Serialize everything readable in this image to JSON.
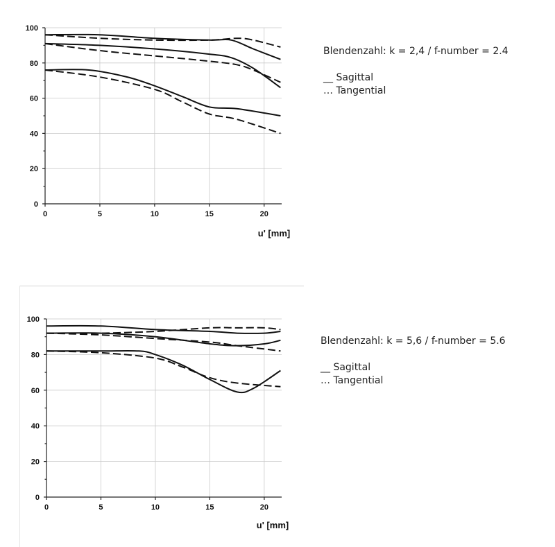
{
  "chart_data": [
    {
      "type": "line",
      "xlabel": "u' [mm]",
      "xlim": [
        0,
        21.6
      ],
      "ylim": [
        0,
        100
      ],
      "xticks": [
        0,
        5,
        10,
        15,
        20
      ],
      "yticks": [
        0,
        20,
        40,
        60,
        80,
        100
      ],
      "grid": true,
      "caption": {
        "title": "Blendenzahl: k = 2,4 / f-number = 2.4",
        "legend": [
          "__ Sagittal",
          "… Tangential"
        ]
      },
      "series": [
        {
          "style": "solid",
          "x": [
            0,
            5,
            10,
            15,
            17,
            19,
            21.5
          ],
          "y": [
            96,
            96,
            94,
            93,
            93,
            88,
            82
          ]
        },
        {
          "style": "dashed",
          "x": [
            0,
            5,
            10,
            15,
            17.5,
            19,
            21.5
          ],
          "y": [
            96,
            94,
            93,
            93,
            94,
            93,
            89
          ]
        },
        {
          "style": "solid",
          "x": [
            0,
            5,
            10,
            15,
            17,
            19,
            21.5
          ],
          "y": [
            91,
            90,
            88,
            85,
            83,
            77,
            66
          ]
        },
        {
          "style": "dashed",
          "x": [
            0,
            5,
            10,
            15,
            17.5,
            19,
            21.5
          ],
          "y": [
            91,
            87,
            84,
            81,
            79,
            76,
            69
          ]
        },
        {
          "style": "solid",
          "x": [
            0,
            4,
            7.5,
            10,
            12.5,
            15,
            17.5,
            21.5
          ],
          "y": [
            76,
            76,
            72,
            67,
            61,
            55,
            54,
            50
          ]
        },
        {
          "style": "dashed",
          "x": [
            0,
            5,
            10,
            12.5,
            15,
            17.5,
            21.5
          ],
          "y": [
            76,
            72,
            65,
            58,
            51,
            48,
            40
          ]
        }
      ]
    },
    {
      "type": "line",
      "xlabel": "u' [mm]",
      "xlim": [
        0,
        21.6
      ],
      "ylim": [
        0,
        100
      ],
      "xticks": [
        0,
        5,
        10,
        15,
        20
      ],
      "yticks": [
        0,
        20,
        40,
        60,
        80,
        100
      ],
      "grid": true,
      "caption": {
        "title": "Blendenzahl: k = 5,6 / f-number = 5.6",
        "legend": [
          "__ Sagittal",
          "… Tangential"
        ]
      },
      "series": [
        {
          "style": "solid",
          "x": [
            0,
            5,
            10,
            15,
            17.5,
            20,
            21.5
          ],
          "y": [
            96,
            96,
            94,
            93,
            92,
            92,
            93
          ]
        },
        {
          "style": "dashed",
          "x": [
            0,
            5,
            10,
            15,
            17.5,
            20,
            21.5
          ],
          "y": [
            92,
            92,
            93,
            95,
            95,
            95,
            94
          ]
        },
        {
          "style": "solid",
          "x": [
            0,
            5,
            10,
            15,
            17.5,
            20,
            21.5
          ],
          "y": [
            92,
            92,
            90,
            86,
            85,
            86,
            88
          ]
        },
        {
          "style": "dashed",
          "x": [
            0,
            5,
            10,
            15,
            17.5,
            21.5
          ],
          "y": [
            92,
            91,
            89,
            87,
            85,
            82
          ]
        },
        {
          "style": "solid",
          "x": [
            0,
            5,
            8.5,
            10,
            12.5,
            15,
            17.5,
            19,
            21.5
          ],
          "y": [
            82,
            82,
            82,
            80,
            74,
            66,
            59,
            61,
            71
          ]
        },
        {
          "style": "dashed",
          "x": [
            0,
            5,
            10,
            12.5,
            15,
            17.5,
            21.5
          ],
          "y": [
            82,
            81,
            78,
            73,
            67,
            64,
            62
          ]
        }
      ]
    }
  ]
}
